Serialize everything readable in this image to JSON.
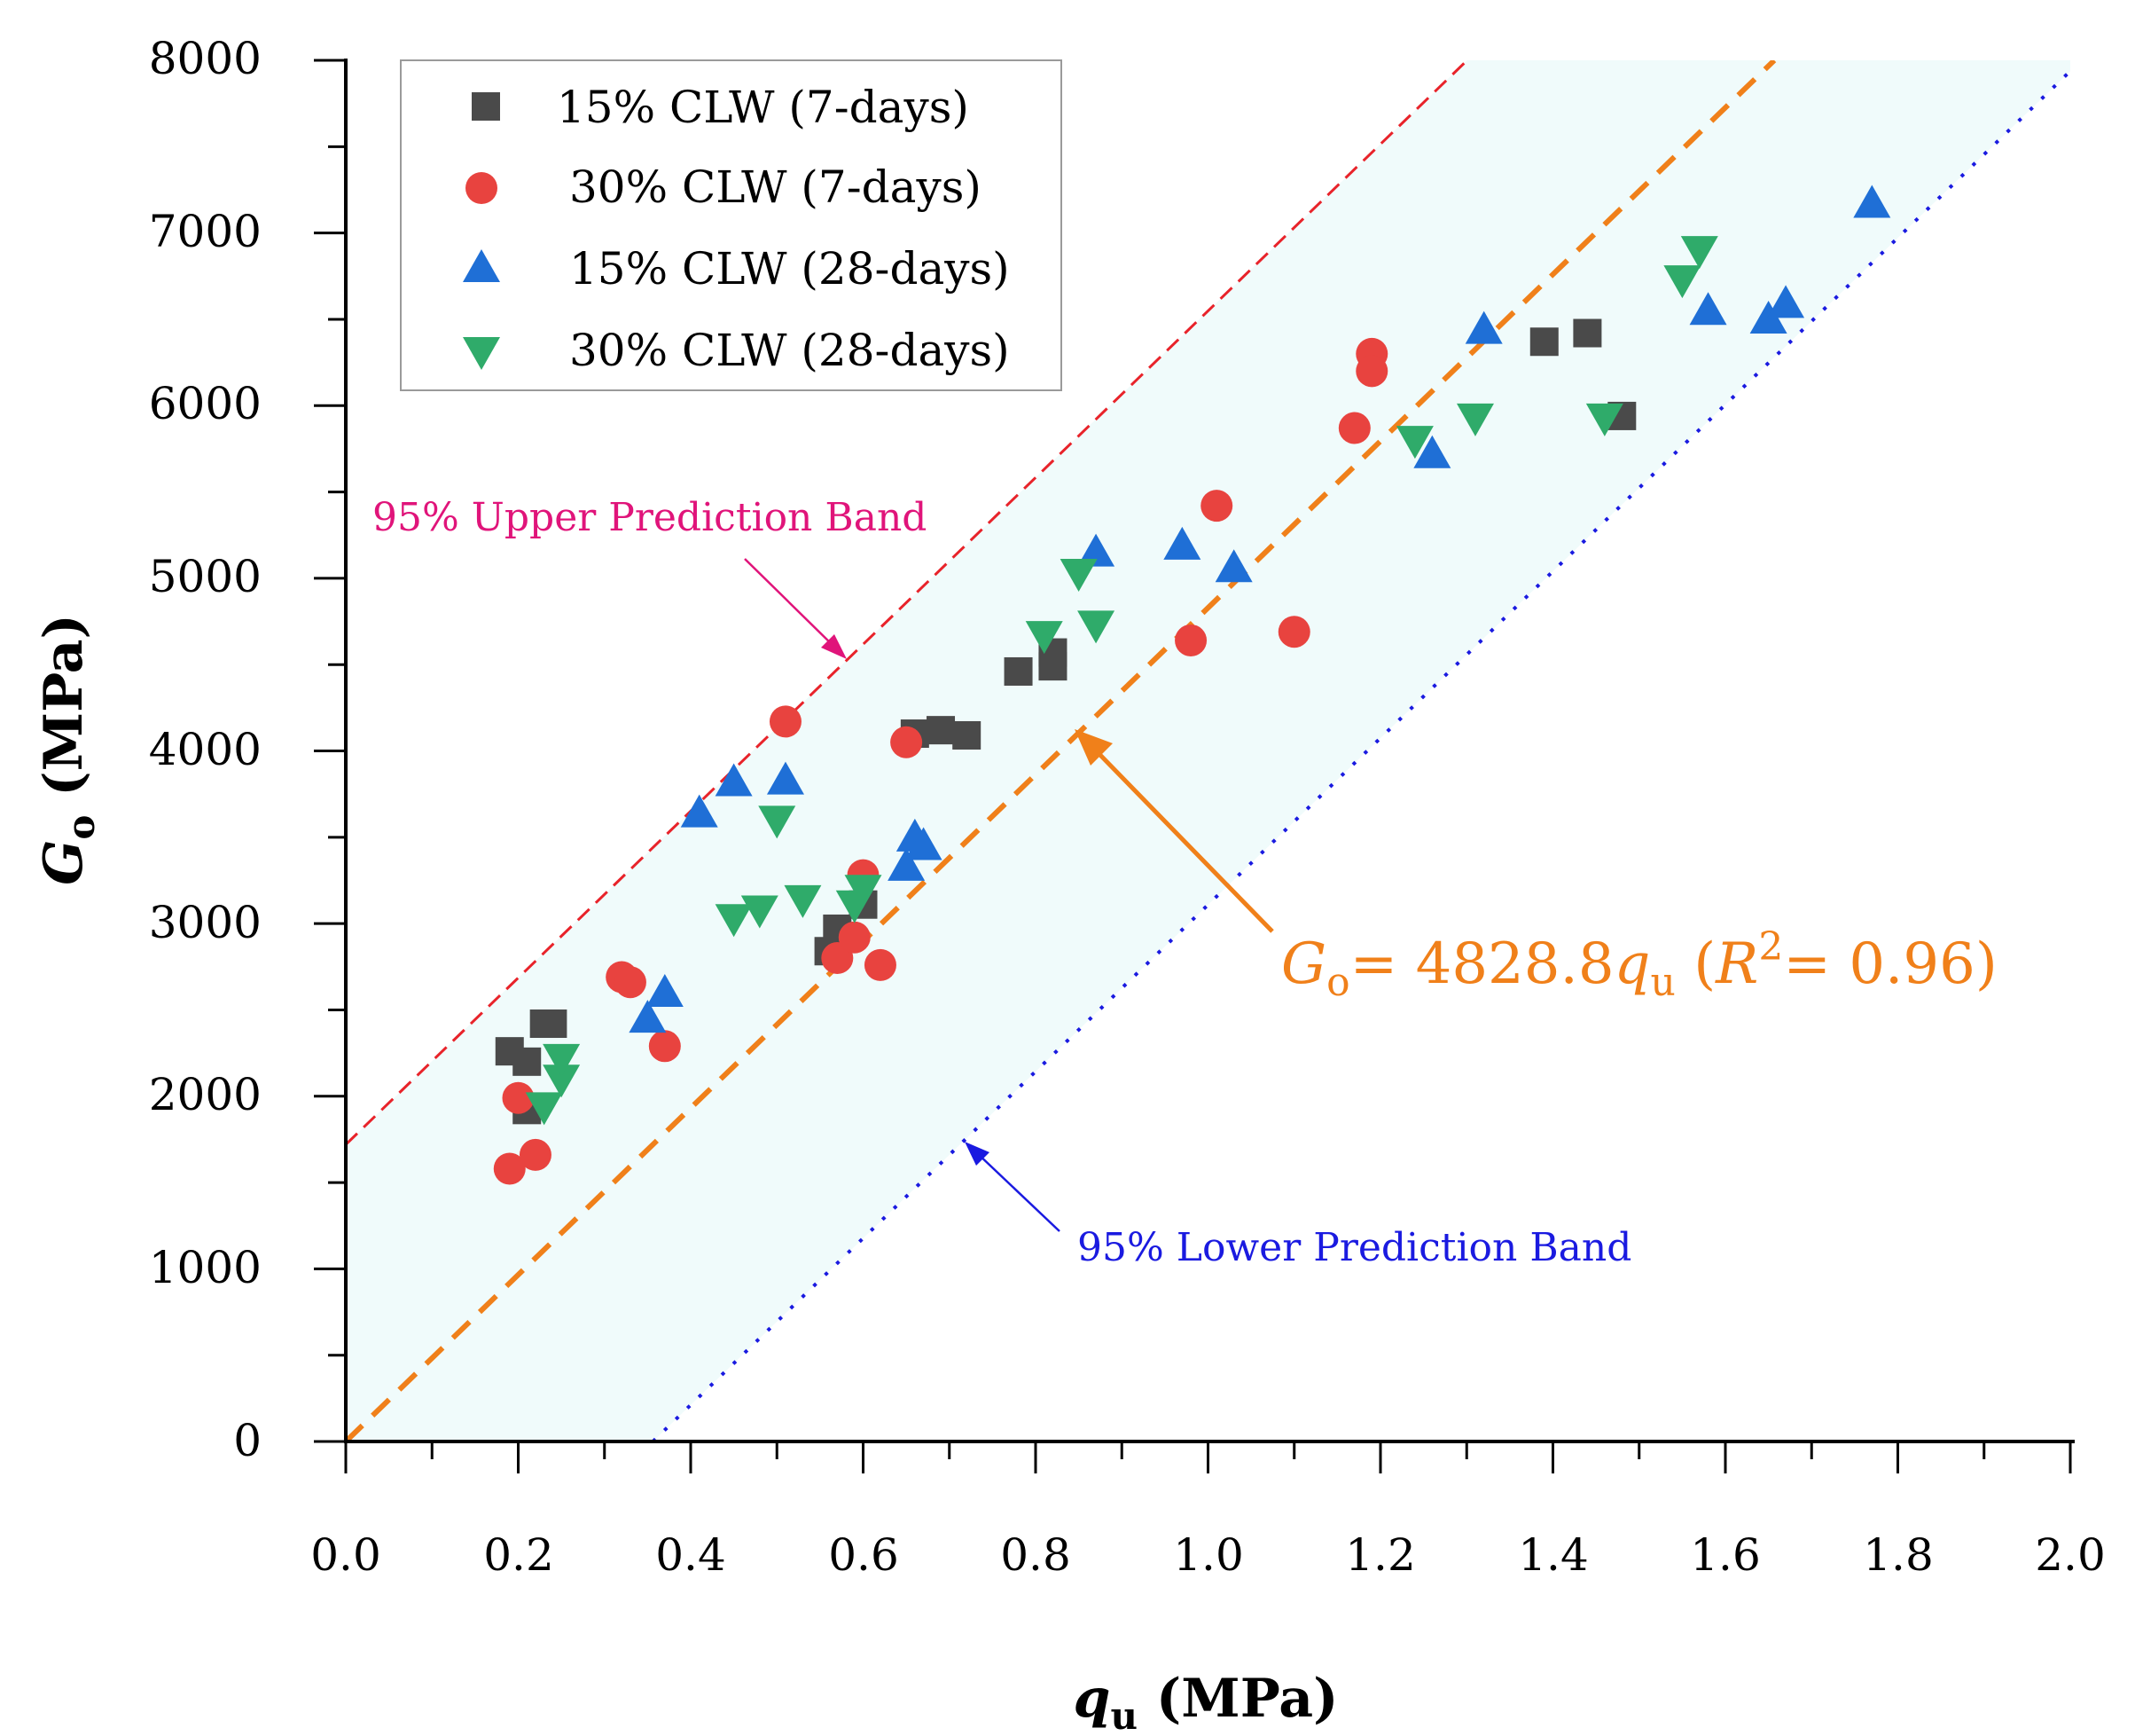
{
  "chart_data": {
    "type": "scatter",
    "xlabel": {
      "symbol": "q",
      "sub": "u",
      "unit": " (MPa)"
    },
    "ylabel": {
      "symbol": "G",
      "sub": "o",
      "unit": " (MPa)"
    },
    "xlim": [
      0,
      2.0
    ],
    "ylim": [
      0,
      8000
    ],
    "xticks": [
      "0.0",
      "0.2",
      "0.4",
      "0.6",
      "0.8",
      "1.0",
      "1.2",
      "1.4",
      "1.6",
      "1.8",
      "2.0"
    ],
    "yticks": [
      "0",
      "1000",
      "2000",
      "3000",
      "4000",
      "5000",
      "6000",
      "7000",
      "8000"
    ],
    "band_fill_color": "#f0fbfb",
    "series": [
      {
        "name": "15% CLW (7-days)",
        "marker": "square",
        "color": "#4a4a4a",
        "points": [
          [
            0.19,
            2260
          ],
          [
            0.21,
            2200
          ],
          [
            0.21,
            1920
          ],
          [
            0.23,
            2420
          ],
          [
            0.24,
            2420
          ],
          [
            0.56,
            2840
          ],
          [
            0.57,
            2970
          ],
          [
            0.6,
            3110
          ],
          [
            0.66,
            4100
          ],
          [
            0.69,
            4120
          ],
          [
            0.72,
            4090
          ],
          [
            0.78,
            4460
          ],
          [
            0.82,
            4490
          ],
          [
            0.82,
            4570
          ],
          [
            1.39,
            6370
          ],
          [
            1.44,
            6420
          ],
          [
            1.48,
            5940
          ]
        ]
      },
      {
        "name": "30% CLW (7-days)",
        "marker": "circle",
        "color": "#e8433f",
        "points": [
          [
            0.19,
            1580
          ],
          [
            0.2,
            1990
          ],
          [
            0.22,
            1660
          ],
          [
            0.32,
            2690
          ],
          [
            0.33,
            2660
          ],
          [
            0.37,
            2290
          ],
          [
            0.51,
            4170
          ],
          [
            0.57,
            2800
          ],
          [
            0.59,
            2920
          ],
          [
            0.6,
            3280
          ],
          [
            0.62,
            2760
          ],
          [
            0.65,
            4050
          ],
          [
            0.98,
            4640
          ],
          [
            1.01,
            5420
          ],
          [
            1.1,
            4690
          ],
          [
            1.17,
            5870
          ],
          [
            1.19,
            6300
          ],
          [
            1.19,
            6200
          ]
        ]
      },
      {
        "name": "15% CLW (28-days)",
        "marker": "triangle-up",
        "color": "#1f6fd6",
        "points": [
          [
            0.35,
            2450
          ],
          [
            0.37,
            2600
          ],
          [
            0.41,
            3640
          ],
          [
            0.45,
            3820
          ],
          [
            0.51,
            3830
          ],
          [
            0.65,
            3330
          ],
          [
            0.66,
            3500
          ],
          [
            0.67,
            3450
          ],
          [
            0.87,
            5150
          ],
          [
            0.97,
            5190
          ],
          [
            1.03,
            5060
          ],
          [
            1.26,
            5720
          ],
          [
            1.32,
            6440
          ],
          [
            1.58,
            6550
          ],
          [
            1.65,
            6500
          ],
          [
            1.67,
            6590
          ],
          [
            1.77,
            7170
          ]
        ]
      },
      {
        "name": "30% CLW (28-days)",
        "marker": "triangle-down",
        "color": "#2fab6a",
        "points": [
          [
            0.23,
            1940
          ],
          [
            0.25,
            2100
          ],
          [
            0.25,
            2220
          ],
          [
            0.45,
            3030
          ],
          [
            0.48,
            3080
          ],
          [
            0.5,
            3600
          ],
          [
            0.53,
            3140
          ],
          [
            0.59,
            3110
          ],
          [
            0.6,
            3200
          ],
          [
            0.81,
            4670
          ],
          [
            0.85,
            5030
          ],
          [
            0.87,
            4730
          ],
          [
            1.24,
            5800
          ],
          [
            1.31,
            5930
          ],
          [
            1.46,
            5930
          ],
          [
            1.55,
            6730
          ],
          [
            1.57,
            6900
          ]
        ]
      }
    ],
    "fit_line": {
      "slope": 4828.8,
      "color": "#f0801a",
      "style": "dashed"
    },
    "upper_band": {
      "intercept": 1720,
      "slope": 4828.8,
      "color": "#e8232a",
      "style": "dashed"
    },
    "lower_band": {
      "intercept": -1720,
      "slope": 4828.8,
      "color": "#1a1ae0",
      "style": "dotted"
    },
    "annotations": {
      "upper_label": "95% Upper Prediction Band",
      "upper_label_color": "#e0147a",
      "lower_label": "95% Lower Prediction Band",
      "lower_label_color": "#1a1ae0",
      "equation": {
        "symbol": "G",
        "sub": "o",
        "eq_mid": "= 4828.8",
        "var": "q",
        "var_sub": "u",
        "paren_open": " (",
        "r": "R",
        "r_sup": "2",
        "r_val": "= 0.96)"
      }
    },
    "legend_position": "top-left"
  }
}
